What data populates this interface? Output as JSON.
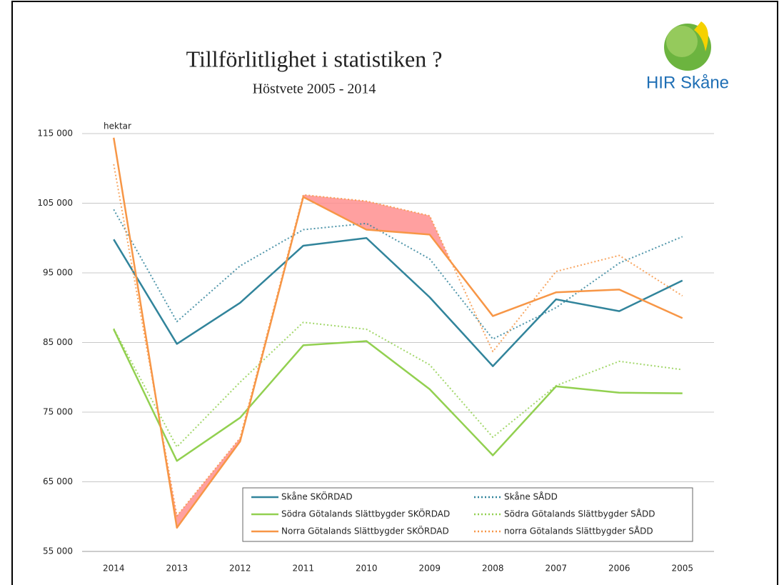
{
  "chart_data": {
    "type": "line",
    "title": "Tillförlitlighet i statistiken ?",
    "subtitle": "Höstvete 2005 - 2014",
    "logo_text": "HIR Skåne",
    "y_axis_label": "hektar",
    "categories": [
      "2014",
      "2013",
      "2012",
      "2011",
      "2010",
      "2009",
      "2008",
      "2007",
      "2006",
      "2005"
    ],
    "ylim": [
      55000,
      115000
    ],
    "yticks": [
      {
        "value": 55000,
        "label": "55 000"
      },
      {
        "value": 65000,
        "label": "65 000"
      },
      {
        "value": 75000,
        "label": "75 000"
      },
      {
        "value": 85000,
        "label": "85 000"
      },
      {
        "value": 95000,
        "label": "95 000"
      },
      {
        "value": 105000,
        "label": "105 000"
      },
      {
        "value": 115000,
        "label": "115 000"
      }
    ],
    "grid": true,
    "series": [
      {
        "name": "Skåne SKÖRDAD",
        "color": "#31849b",
        "dashed": false,
        "values": [
          99800,
          84800,
          90700,
          98900,
          100000,
          91500,
          81600,
          91200,
          89500,
          93900
        ]
      },
      {
        "name": "Skåne SÅDD",
        "color": "#31849b",
        "dashed": true,
        "values": [
          104100,
          88000,
          96000,
          101200,
          102100,
          97000,
          85500,
          90000,
          96400,
          100200
        ]
      },
      {
        "name": "Södra Götalands Slättbygder SKÖRDAD",
        "color": "#92d050",
        "dashed": false,
        "values": [
          86900,
          68000,
          74200,
          84600,
          85200,
          78300,
          68800,
          78700,
          77800,
          77700
        ]
      },
      {
        "name": "Södra Götalands Slättbygder SÅDD",
        "color": "#92d050",
        "dashed": true,
        "values": [
          87000,
          70000,
          79300,
          87900,
          86900,
          81800,
          71400,
          78800,
          82300,
          81100
        ]
      },
      {
        "name": "Norra Götalands Slättbygder SKÖRDAD",
        "color": "#f79646",
        "dashed": false,
        "values": [
          114400,
          58400,
          70800,
          105900,
          101200,
          100500,
          88800,
          92200,
          92600,
          88500
        ]
      },
      {
        "name": "norra Götalands Slättbygder SÅDD",
        "color": "#f79646",
        "dashed": true,
        "values": [
          110600,
          60100,
          71300,
          106200,
          105300,
          103200,
          83700,
          95200,
          97500,
          91700
        ]
      }
    ]
  }
}
